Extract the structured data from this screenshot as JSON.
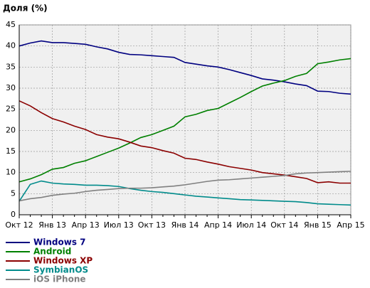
{
  "chart_data": {
    "type": "line",
    "title": "Доля (%)",
    "categories": [
      "Окт 12",
      null,
      null,
      "Янв 13",
      null,
      null,
      "Апр 13",
      null,
      null,
      "Июл 13",
      null,
      null,
      "Окт 13",
      null,
      null,
      "Янв 14",
      null,
      null,
      "Апр 14",
      null,
      null,
      "Июл 14",
      null,
      null,
      "Окт 14",
      null,
      null,
      "Янв 15",
      null,
      null,
      "Апр 15"
    ],
    "series": [
      {
        "name": "Windows 7",
        "color": "#000080",
        "values": [
          40,
          40.7,
          41.2,
          40.8,
          40.8,
          40.6,
          40.4,
          39.8,
          39.3,
          38.5,
          38,
          37.9,
          37.7,
          37.5,
          37.3,
          36.1,
          35.7,
          35.3,
          35,
          34.4,
          33.7,
          33,
          32.2,
          31.9,
          31.5,
          31,
          30.6,
          29.3,
          29.2,
          28.8,
          28.6
        ]
      },
      {
        "name": "Android",
        "color": "#008000",
        "values": [
          7.8,
          8.5,
          9.5,
          10.8,
          11.2,
          12.2,
          12.8,
          13.8,
          14.8,
          15.8,
          17,
          18.3,
          19,
          20,
          21,
          23.2,
          23.8,
          24.7,
          25.2,
          26.5,
          27.8,
          29.2,
          30.5,
          31.2,
          31.8,
          32.8,
          33.5,
          35.8,
          36.2,
          36.7,
          37
        ]
      },
      {
        "name": "Windows XP",
        "color": "#8b0000",
        "values": [
          27,
          25.8,
          24.2,
          22.8,
          22,
          21,
          20.2,
          19,
          18.4,
          18,
          17.2,
          16.3,
          15.9,
          15.2,
          14.6,
          13.4,
          13.1,
          12.5,
          12,
          11.4,
          11,
          10.6,
          10,
          9.7,
          9.4,
          9,
          8.6,
          7.6,
          7.8,
          7.5,
          7.5
        ]
      },
      {
        "name": "SymbianOS",
        "color": "#008b8b",
        "values": [
          3.2,
          7.2,
          8,
          7.5,
          7.3,
          7.2,
          7,
          7,
          6.9,
          6.7,
          6.2,
          5.8,
          5.5,
          5.3,
          5,
          4.7,
          4.4,
          4.2,
          4,
          3.8,
          3.6,
          3.5,
          3.4,
          3.3,
          3.2,
          3.1,
          2.9,
          2.6,
          2.5,
          2.4,
          2.3
        ]
      },
      {
        "name": "iOS iPhone",
        "color": "#808080",
        "values": [
          3.3,
          3.8,
          4.1,
          4.6,
          4.9,
          5.1,
          5.5,
          5.8,
          6,
          6.2,
          6.3,
          6.3,
          6.4,
          6.6,
          6.8,
          7.1,
          7.5,
          7.9,
          8.2,
          8.3,
          8.5,
          8.7,
          8.9,
          9.1,
          9.3,
          9.7,
          9.9,
          10,
          10.1,
          10.2,
          10.3
        ]
      }
    ],
    "ylim": [
      0,
      45
    ],
    "yticks": [
      0,
      5,
      10,
      15,
      20,
      25,
      30,
      35,
      40,
      45
    ],
    "grid": true,
    "legend": "bottom"
  }
}
